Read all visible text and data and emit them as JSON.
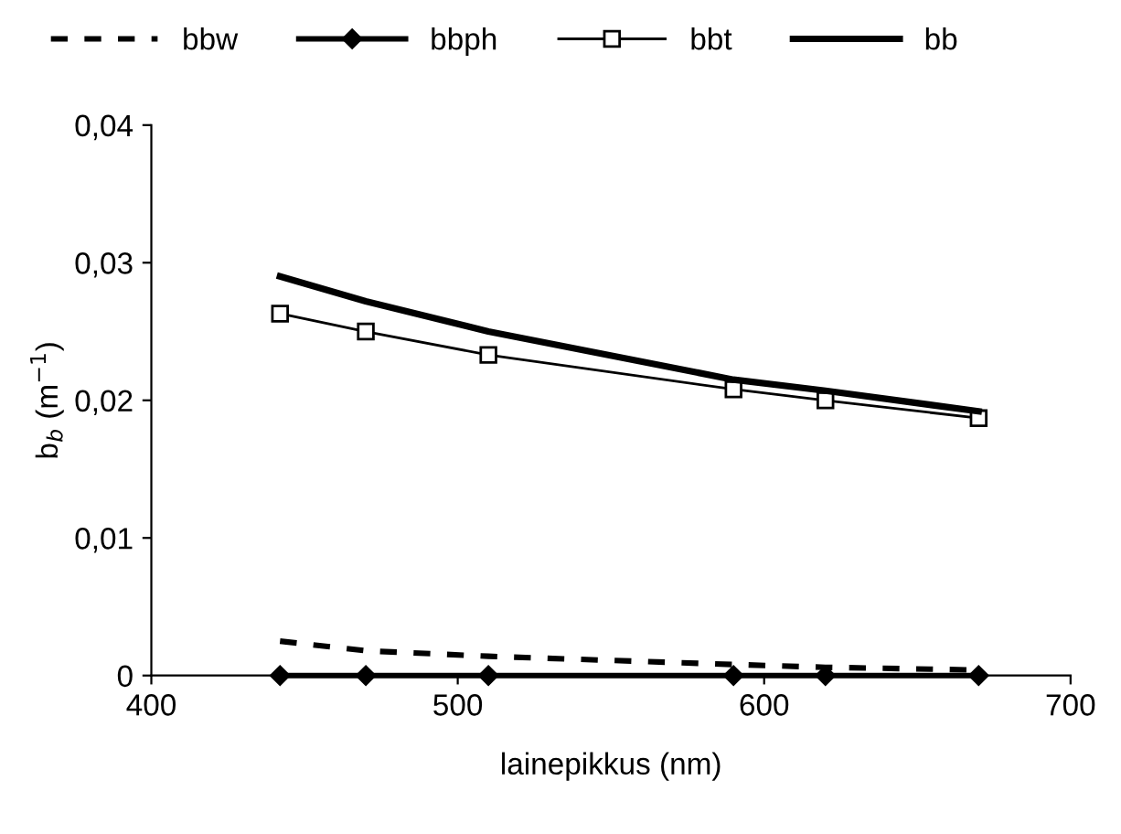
{
  "chart_data": {
    "type": "line",
    "xlabel": "lainepikkus (nm)",
    "ylabel": "b$_{b}$ (m$^{−1}$)",
    "x": [
      442,
      470,
      510,
      590,
      620,
      670
    ],
    "series": [
      {
        "name": "bbw",
        "color": "#000000",
        "line_style": "dashed",
        "marker": "none",
        "values": [
          0.0025,
          0.0018,
          0.0014,
          0.0008,
          0.0006,
          0.0004
        ]
      },
      {
        "name": "bbph",
        "color": "#000000",
        "line_style": "solid",
        "marker": "diamond",
        "values": [
          0,
          0,
          0,
          0,
          0,
          0
        ]
      },
      {
        "name": "bbt",
        "color": "#000000",
        "line_style": "solid",
        "marker": "square",
        "values": [
          0.0263,
          0.025,
          0.0233,
          0.0208,
          0.02,
          0.0187
        ]
      },
      {
        "name": "bb",
        "color": "#000000",
        "line_style": "solid",
        "marker": "none",
        "values": [
          0.029,
          0.0272,
          0.025,
          0.0215,
          0.0207,
          0.0192
        ]
      }
    ],
    "xlim": [
      400,
      700
    ],
    "xticks": [
      400,
      500,
      600,
      700
    ],
    "ylim": [
      0,
      0.04
    ],
    "yticks": [
      {
        "value": 0,
        "label": "0"
      },
      {
        "value": 0.01,
        "label": "0,01"
      },
      {
        "value": 0.02,
        "label": "0,02"
      },
      {
        "value": 0.03,
        "label": "0,03"
      },
      {
        "value": 0.04,
        "label": "0,04"
      }
    ],
    "grid": false,
    "legend": "top"
  }
}
